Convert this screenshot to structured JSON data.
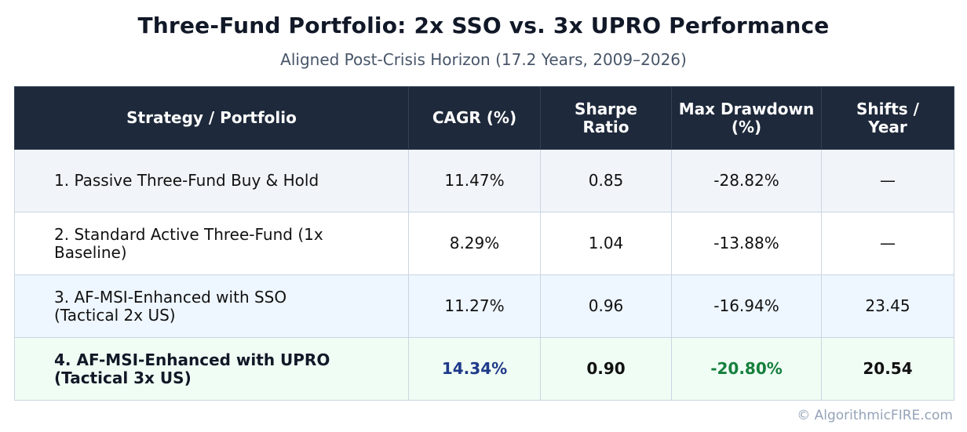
{
  "title": "Three-Fund Portfolio: 2x SSO vs. 3x UPRO Performance",
  "subtitle": "Aligned Post-Crisis Horizon (17.2 Years, 2009–2026)",
  "table": {
    "headers": {
      "strategy": "Strategy / Portfolio",
      "cagr": "CAGR (%)",
      "sharpe_line1": "Sharpe",
      "sharpe_line2": "Ratio",
      "drawdown_line1": "Max Drawdown",
      "drawdown_line2": "(%)",
      "shifts_line1": "Shifts /",
      "shifts_line2": "Year"
    },
    "rows": [
      {
        "strategy_line1": "1. Passive Three-Fund Buy & Hold",
        "strategy_line2": "",
        "cagr": "11.47%",
        "sharpe": "0.85",
        "max_drawdown": "-28.82%",
        "shifts_per_year": "—"
      },
      {
        "strategy_line1": "2. Standard Active Three-Fund (1x",
        "strategy_line2": "Baseline)",
        "cagr": "8.29%",
        "sharpe": "1.04",
        "max_drawdown": "-13.88%",
        "shifts_per_year": "—"
      },
      {
        "strategy_line1": "3. AF-MSI-Enhanced with SSO",
        "strategy_line2": "(Tactical 2x US)",
        "cagr": "11.27%",
        "sharpe": "0.96",
        "max_drawdown": "-16.94%",
        "shifts_per_year": "23.45"
      },
      {
        "strategy_line1": "4. AF-MSI-Enhanced with UPRO",
        "strategy_line2": "(Tactical 3x US)",
        "cagr": "14.34%",
        "sharpe": "0.90",
        "max_drawdown": "-20.80%",
        "shifts_per_year": "20.54"
      }
    ]
  },
  "footer": "© AlgorithmicFIRE.com",
  "colors": {
    "header_bg": "#1e293b",
    "highlight_cagr": "#1e3a8a",
    "highlight_drawdown": "#15803d",
    "row_highlight_bg": "#f0fdf4"
  }
}
